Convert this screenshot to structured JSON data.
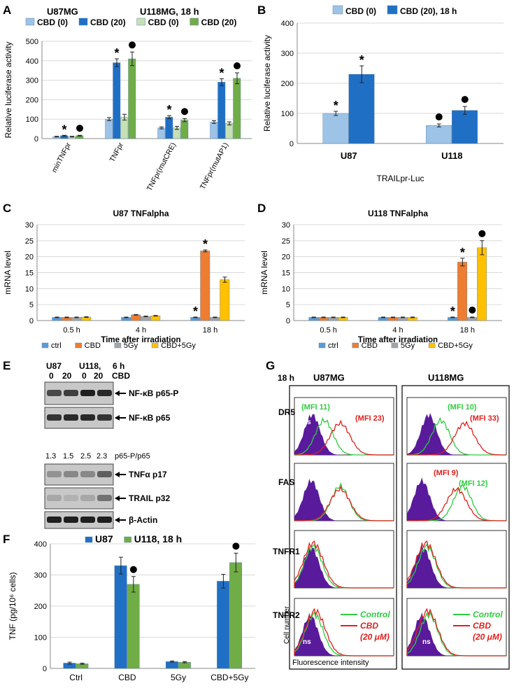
{
  "colors": {
    "light_blue": "#9dc3e6",
    "dark_blue": "#1f6fc5",
    "light_green": "#c5e0b4",
    "dark_green": "#70ad47",
    "ctrl": "#5b9bd5",
    "cbd": "#ed7d31",
    "gy": "#a5a5a5",
    "cbdgy": "#ffc000",
    "u87": "#1f6fc5",
    "u118": "#70ad47",
    "purple": "#5a1a9c",
    "green_line": "#2ecc40",
    "red_line": "#e0201c"
  },
  "panels": {
    "A": {
      "letter": "A",
      "title1": "U87MG",
      "title2": "U118MG, 18 h"
    },
    "B": {
      "letter": "B"
    },
    "C": {
      "letter": "C"
    },
    "D": {
      "letter": "D"
    },
    "E": {
      "letter": "E"
    },
    "F": {
      "letter": "F"
    },
    "G": {
      "letter": "G"
    }
  },
  "chart_data": [
    {
      "id": "A",
      "type": "bar",
      "title": "U87MG / U118MG, 18 h",
      "ylabel": "Relative luciferase activity",
      "ylim": [
        0,
        500
      ],
      "yticks": [
        0,
        100,
        200,
        300,
        400,
        500
      ],
      "categories": [
        "minTNFpr",
        "TNFpr",
        "TNFpr(mutCRE)",
        "TNFpr(mutAP1)"
      ],
      "series": [
        {
          "name": "CBD (0)",
          "color": "#9dc3e6",
          "values": [
            10,
            100,
            55,
            85
          ],
          "errors": [
            2,
            8,
            5,
            7
          ]
        },
        {
          "name": "CBD (20)",
          "color": "#1f6fc5",
          "values": [
            15,
            390,
            110,
            290
          ],
          "errors": [
            2,
            20,
            8,
            18
          ]
        },
        {
          "name": "CBD (0)",
          "color": "#c5e0b4",
          "values": [
            10,
            110,
            55,
            78
          ],
          "errors": [
            2,
            15,
            8,
            8
          ]
        },
        {
          "name": "CBD (20)",
          "color": "#70ad47",
          "values": [
            15,
            410,
            95,
            310
          ],
          "errors": [
            2,
            35,
            8,
            28
          ]
        }
      ],
      "marks": [
        {
          "cat": 0,
          "series": 1,
          "sym": "*"
        },
        {
          "cat": 0,
          "series": 3,
          "sym": "●"
        },
        {
          "cat": 1,
          "series": 1,
          "sym": "*"
        },
        {
          "cat": 1,
          "series": 3,
          "sym": "●"
        },
        {
          "cat": 2,
          "series": 1,
          "sym": "*"
        },
        {
          "cat": 2,
          "series": 3,
          "sym": "●"
        },
        {
          "cat": 3,
          "series": 1,
          "sym": "*"
        },
        {
          "cat": 3,
          "series": 3,
          "sym": "●"
        }
      ]
    },
    {
      "id": "B",
      "type": "bar",
      "title": "CBD (0) / CBD (20), 18 h",
      "ylabel": "Relative luciferase activity",
      "xlabel": "TRAILpr-Luc",
      "ylim": [
        0,
        400
      ],
      "yticks": [
        0,
        100,
        200,
        300,
        400
      ],
      "categories": [
        "U87",
        "U118"
      ],
      "series": [
        {
          "name": "CBD (0)",
          "color": "#9dc3e6",
          "values": [
            100,
            60
          ],
          "errors": [
            7,
            5
          ]
        },
        {
          "name": "CBD (20), 18 h",
          "color": "#1f6fc5",
          "values": [
            230,
            110
          ],
          "errors": [
            28,
            13
          ]
        }
      ],
      "marks": [
        {
          "cat": 0,
          "series": 0,
          "sym": "*"
        },
        {
          "cat": 0,
          "series": 1,
          "sym": "*"
        },
        {
          "cat": 1,
          "series": 0,
          "sym": "●"
        },
        {
          "cat": 1,
          "series": 1,
          "sym": "●"
        }
      ]
    },
    {
      "id": "C",
      "type": "bar",
      "title": "U87 TNFalpha",
      "ylabel": "mRNA level",
      "xlabel": "Time after irradiation",
      "ylim": [
        0,
        30
      ],
      "yticks": [
        0,
        5,
        10,
        15,
        20,
        25,
        30
      ],
      "categories": [
        "0.5 h",
        "4 h",
        "18 h"
      ],
      "series": [
        {
          "name": "ctrl",
          "color": "#5b9bd5",
          "values": [
            1,
            1,
            1
          ],
          "errors": [
            0.1,
            0.1,
            0.1
          ]
        },
        {
          "name": "CBD",
          "color": "#ed7d31",
          "values": [
            1,
            1.8,
            21.8
          ],
          "errors": [
            0.1,
            0.1,
            0.3
          ]
        },
        {
          "name": "5Gy",
          "color": "#a5a5a5",
          "values": [
            1,
            1.3,
            1
          ],
          "errors": [
            0.1,
            0.1,
            0.1
          ]
        },
        {
          "name": "CBD+5Gy",
          "color": "#ffc000",
          "values": [
            1.1,
            1.5,
            12.8
          ],
          "errors": [
            0.1,
            0.1,
            0.8
          ]
        }
      ],
      "marks": [
        {
          "cat": 2,
          "series": 0,
          "sym": "*"
        },
        {
          "cat": 2,
          "series": 1,
          "sym": "*"
        }
      ]
    },
    {
      "id": "D",
      "type": "bar",
      "title": "U118 TNFalpha",
      "ylabel": "mRNA level",
      "xlabel": "Time after irradiation",
      "ylim": [
        0,
        30
      ],
      "yticks": [
        0,
        5,
        10,
        15,
        20,
        25,
        30
      ],
      "categories": [
        "0.5 h",
        "4 h",
        "18 h"
      ],
      "series": [
        {
          "name": "ctrl",
          "color": "#5b9bd5",
          "values": [
            1,
            1,
            1
          ],
          "errors": [
            0.1,
            0.1,
            0.1
          ]
        },
        {
          "name": "CBD",
          "color": "#ed7d31",
          "values": [
            1,
            1,
            18.3
          ],
          "errors": [
            0.1,
            0.1,
            1.2
          ]
        },
        {
          "name": "5Gy",
          "color": "#a5a5a5",
          "values": [
            1,
            1,
            1
          ],
          "errors": [
            0.1,
            0.1,
            0.1
          ]
        },
        {
          "name": "CBD+5Gy",
          "color": "#ffc000",
          "values": [
            1,
            1,
            22.8
          ],
          "errors": [
            0.1,
            0.1,
            2.2
          ]
        }
      ],
      "marks": [
        {
          "cat": 2,
          "series": 0,
          "sym": "*"
        },
        {
          "cat": 2,
          "series": 1,
          "sym": "*"
        },
        {
          "cat": 2,
          "series": 2,
          "sym": "●"
        },
        {
          "cat": 2,
          "series": 3,
          "sym": "●"
        }
      ]
    },
    {
      "id": "F",
      "type": "bar",
      "title": "U87 / U118, 18 h",
      "ylabel": "TNF (pg/10⁶ cells)",
      "ylim": [
        0,
        400
      ],
      "yticks": [
        0,
        100,
        200,
        300,
        400
      ],
      "categories": [
        "Ctrl",
        "CBD",
        "5Gy",
        "CBD+5Gy"
      ],
      "series": [
        {
          "name": "U87",
          "color": "#1f6fc5",
          "values": [
            17,
            330,
            22,
            280
          ],
          "errors": [
            3,
            27,
            2,
            22
          ]
        },
        {
          "name": "U118, 18 h",
          "color": "#70ad47",
          "values": [
            15,
            270,
            20,
            340
          ],
          "errors": [
            2,
            25,
            2,
            30
          ]
        }
      ],
      "marks": [
        {
          "cat": 1,
          "series": 1,
          "sym": "●"
        },
        {
          "cat": 3,
          "series": 1,
          "sym": "●"
        }
      ]
    }
  ],
  "western": {
    "header": {
      "u87": "U87",
      "u118": "U118,",
      "time": "6 h",
      "c1": "0",
      "c2": "20",
      "c3": "0",
      "c4": "20",
      "cbd": "CBD"
    },
    "bands": [
      "NF-κB p65-P",
      "NF-κB p65",
      "TNFα p17",
      "TRAIL p32",
      "β-Actin"
    ],
    "ratios": [
      "1.3",
      "1.5",
      "2.5",
      "2.3"
    ],
    "ratio_label": "p65-P/p65"
  },
  "flow": {
    "time": "18 h",
    "col1": "U87MG",
    "col2": "U118MG",
    "rows": [
      "DR5",
      "FAS",
      "TNFR1",
      "TNFR2"
    ],
    "ns": "ns",
    "mfi": {
      "dr5_u87_ctrl": "(MFI 11)",
      "dr5_u87_cbd": "(MFI 23)",
      "dr5_u118_ctrl": "(MFI 10)",
      "dr5_u118_cbd": "(MFI 33)",
      "fas_u118_cbd": "(MFI 9)",
      "fas_u118_ctrl": "(MFI 12)"
    },
    "legend": {
      "control": "Control",
      "cbd": "CBD",
      "dose": "(20 μM)"
    },
    "xlabel": "Fluorescence intensity",
    "ylabel": "Cell number"
  }
}
